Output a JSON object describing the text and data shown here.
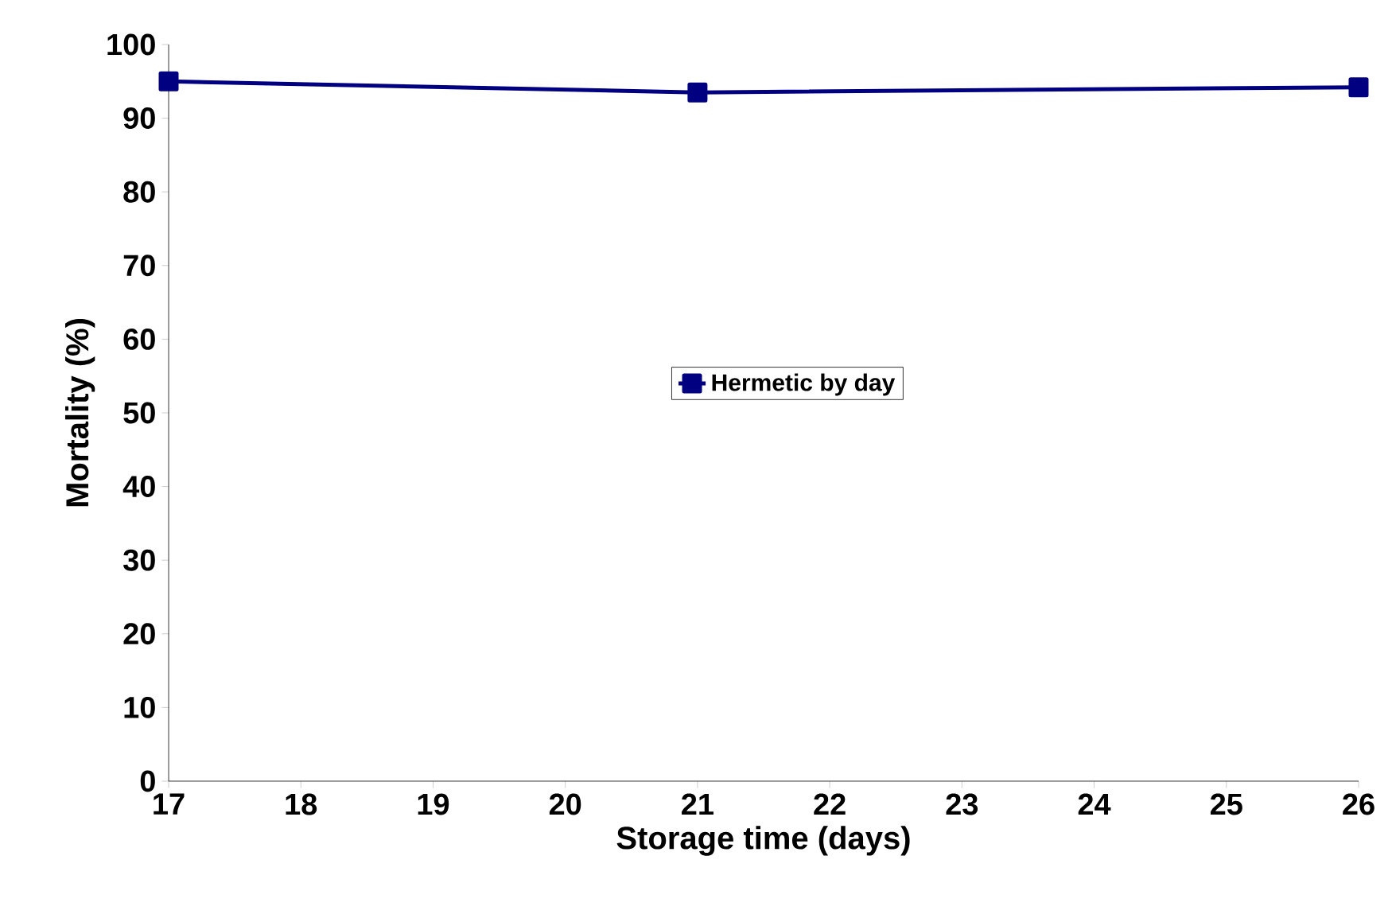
{
  "chart_data": {
    "type": "line",
    "xlabel": "Storage time (days)",
    "ylabel": "Mortality (%)",
    "x": [
      17,
      21,
      26
    ],
    "series": [
      {
        "name": "Hermetic by day",
        "color": "#000080",
        "values": [
          95,
          93.5,
          94.2
        ]
      }
    ],
    "xlim": [
      17,
      26
    ],
    "xticks": [
      17,
      18,
      19,
      20,
      21,
      22,
      23,
      24,
      25,
      26
    ],
    "ylim": [
      0,
      100
    ],
    "yticks": [
      0,
      10,
      20,
      30,
      40,
      50,
      60,
      70,
      80,
      90,
      100
    ],
    "marker": "square",
    "line_style": "solid",
    "legend": "center",
    "grid": false
  }
}
